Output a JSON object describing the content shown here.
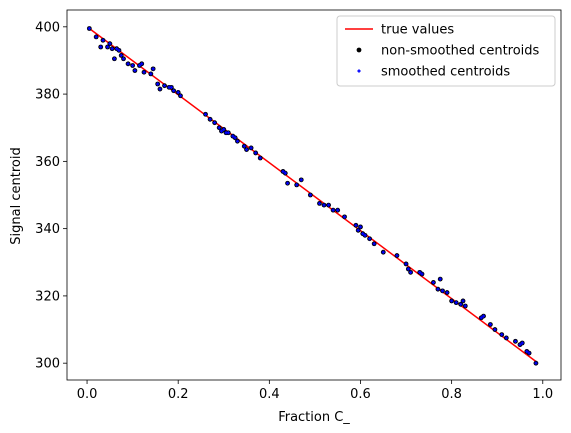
{
  "chart_data": {
    "type": "scatter",
    "title": "",
    "xlabel": "Fraction C_",
    "ylabel": "Signal centroid",
    "xlim": [
      -0.044,
      1.04
    ],
    "ylim": [
      295,
      405
    ],
    "xticks": [
      0.0,
      0.2,
      0.4,
      0.6,
      0.8,
      1.0
    ],
    "xtick_labels": [
      "0.0",
      "0.2",
      "0.4",
      "0.6",
      "0.8",
      "1.0"
    ],
    "yticks": [
      300,
      320,
      340,
      360,
      380,
      400
    ],
    "ytick_labels": [
      "300",
      "320",
      "340",
      "360",
      "380",
      "400"
    ],
    "grid": false,
    "legend_position": "top-right",
    "colors": {
      "true_line": "#ff0000",
      "non_smoothed": "#000000",
      "smoothed": "#0000ff"
    },
    "series": [
      {
        "name": "true values",
        "kind": "line",
        "x": [
          0.005,
          0.985
        ],
        "y": [
          399.5,
          300.5
        ]
      },
      {
        "name": "non-smoothed centroids",
        "kind": "scatter",
        "marker": "dot",
        "x": [
          0.005,
          0.02,
          0.03,
          0.035,
          0.045,
          0.05,
          0.055,
          0.06,
          0.065,
          0.07,
          0.075,
          0.08,
          0.09,
          0.1,
          0.105,
          0.115,
          0.12,
          0.125,
          0.14,
          0.145,
          0.155,
          0.16,
          0.17,
          0.18,
          0.185,
          0.19,
          0.2,
          0.205,
          0.26,
          0.27,
          0.28,
          0.29,
          0.295,
          0.3,
          0.305,
          0.31,
          0.32,
          0.325,
          0.33,
          0.345,
          0.35,
          0.36,
          0.37,
          0.38,
          0.43,
          0.435,
          0.44,
          0.46,
          0.47,
          0.49,
          0.51,
          0.52,
          0.53,
          0.54,
          0.55,
          0.565,
          0.59,
          0.595,
          0.6,
          0.605,
          0.61,
          0.62,
          0.63,
          0.65,
          0.68,
          0.7,
          0.705,
          0.71,
          0.73,
          0.735,
          0.76,
          0.77,
          0.775,
          0.78,
          0.79,
          0.8,
          0.81,
          0.82,
          0.825,
          0.83,
          0.865,
          0.87,
          0.885,
          0.895,
          0.91,
          0.92,
          0.94,
          0.95,
          0.955,
          0.965,
          0.97,
          0.985
        ],
        "y": [
          399.5,
          397.0,
          394.0,
          396.0,
          394.0,
          395.0,
          393.5,
          390.5,
          393.5,
          393.0,
          391.5,
          390.5,
          389.0,
          388.5,
          387.0,
          388.5,
          389.0,
          386.5,
          386.0,
          387.5,
          383.0,
          381.5,
          382.5,
          382.0,
          382.0,
          381.0,
          380.5,
          379.5,
          374.0,
          372.5,
          371.5,
          370.0,
          369.0,
          369.5,
          368.5,
          368.5,
          367.5,
          367.0,
          366.0,
          364.5,
          363.5,
          364.0,
          362.5,
          361.0,
          357.0,
          356.5,
          353.5,
          353.0,
          354.5,
          350.0,
          347.5,
          347.0,
          347.0,
          345.5,
          345.5,
          343.5,
          341.0,
          339.5,
          340.5,
          338.5,
          338.0,
          337.0,
          335.5,
          333.0,
          332.0,
          329.5,
          328.0,
          327.0,
          327.0,
          326.5,
          324.0,
          322.0,
          325.0,
          321.5,
          321.0,
          318.5,
          318.0,
          317.5,
          318.5,
          317.0,
          313.5,
          314.0,
          311.5,
          310.0,
          308.5,
          307.5,
          306.5,
          305.5,
          306.0,
          303.5,
          303.0,
          300.0
        ]
      },
      {
        "name": "smoothed centroids",
        "kind": "scatter",
        "marker": "plus",
        "x": [
          0.005,
          0.02,
          0.03,
          0.035,
          0.045,
          0.05,
          0.055,
          0.06,
          0.065,
          0.07,
          0.075,
          0.08,
          0.09,
          0.1,
          0.105,
          0.115,
          0.12,
          0.125,
          0.14,
          0.145,
          0.155,
          0.16,
          0.17,
          0.18,
          0.185,
          0.19,
          0.2,
          0.205,
          0.26,
          0.27,
          0.28,
          0.29,
          0.295,
          0.3,
          0.305,
          0.31,
          0.32,
          0.325,
          0.33,
          0.345,
          0.35,
          0.36,
          0.37,
          0.38,
          0.43,
          0.435,
          0.44,
          0.46,
          0.47,
          0.49,
          0.51,
          0.52,
          0.53,
          0.54,
          0.55,
          0.565,
          0.59,
          0.595,
          0.6,
          0.605,
          0.61,
          0.62,
          0.63,
          0.65,
          0.68,
          0.7,
          0.705,
          0.71,
          0.73,
          0.735,
          0.76,
          0.77,
          0.775,
          0.78,
          0.79,
          0.8,
          0.81,
          0.82,
          0.825,
          0.83,
          0.865,
          0.87,
          0.885,
          0.895,
          0.91,
          0.92,
          0.94,
          0.95,
          0.955,
          0.965,
          0.97,
          0.985
        ],
        "y": [
          399.5,
          397.0,
          394.0,
          396.0,
          394.0,
          395.0,
          393.5,
          390.5,
          393.5,
          393.0,
          391.5,
          390.5,
          389.0,
          388.5,
          387.0,
          388.5,
          389.0,
          386.5,
          386.0,
          387.5,
          383.0,
          381.5,
          382.5,
          382.0,
          382.0,
          381.0,
          380.5,
          379.5,
          374.0,
          372.5,
          371.5,
          370.0,
          369.0,
          369.5,
          368.5,
          368.5,
          367.5,
          367.0,
          366.0,
          364.5,
          363.5,
          364.0,
          362.5,
          361.0,
          357.0,
          356.5,
          353.5,
          353.0,
          354.5,
          350.0,
          347.5,
          347.0,
          347.0,
          345.5,
          345.5,
          343.5,
          341.0,
          339.5,
          340.5,
          338.5,
          338.0,
          337.0,
          335.5,
          333.0,
          332.0,
          329.5,
          328.0,
          327.0,
          327.0,
          326.5,
          324.0,
          322.0,
          325.0,
          321.5,
          321.0,
          318.5,
          318.0,
          317.5,
          318.5,
          317.0,
          313.5,
          314.0,
          311.5,
          310.0,
          308.5,
          307.5,
          306.5,
          305.5,
          306.0,
          303.5,
          303.0,
          300.0
        ]
      }
    ]
  }
}
